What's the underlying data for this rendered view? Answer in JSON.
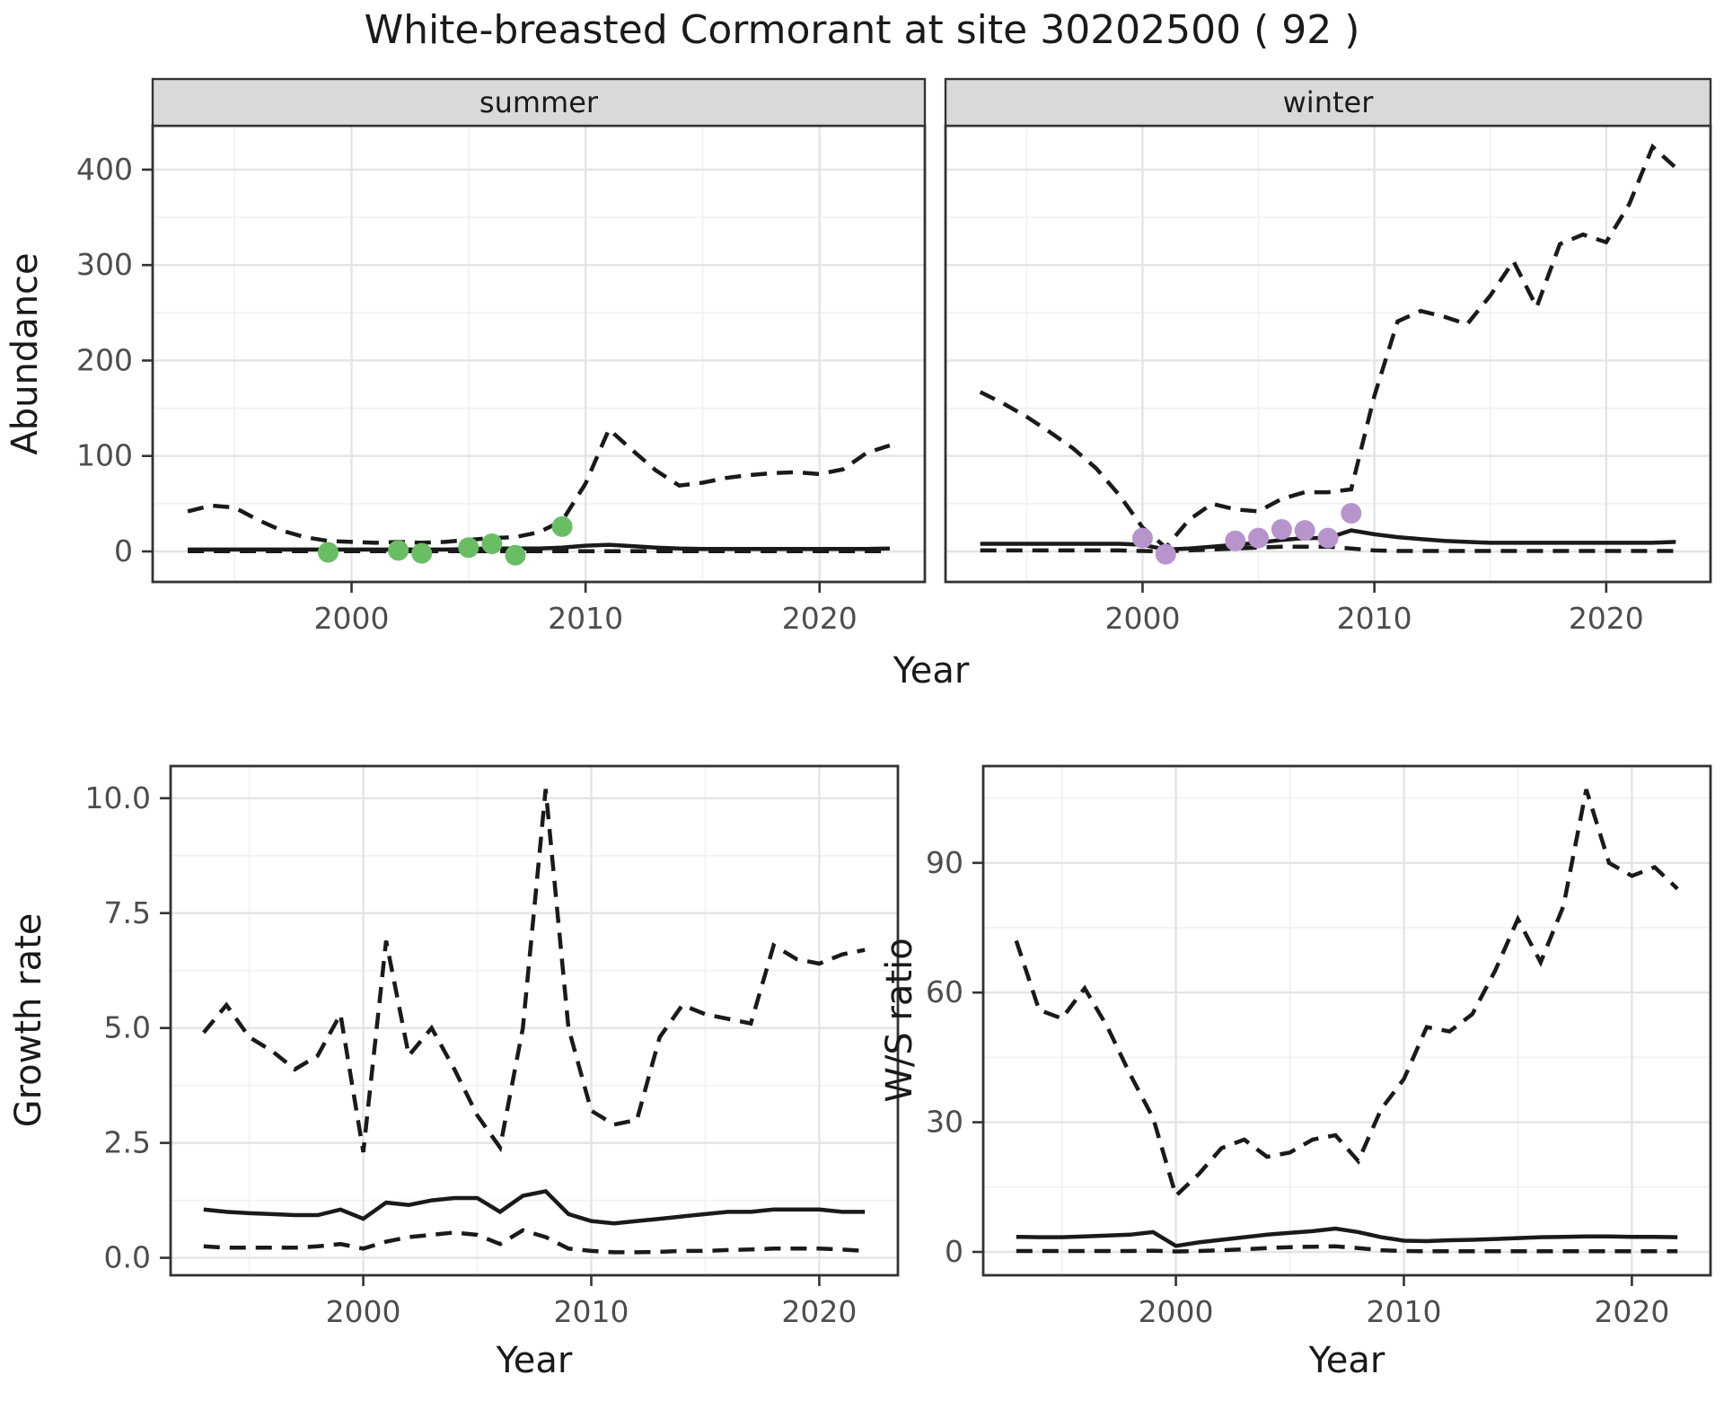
{
  "title": "White-breasted Cormorant at site 30202500 ( 92 )",
  "axis_titles": {
    "abundance": "Abundance",
    "year_top": "Year",
    "growth": "Growth rate",
    "year_growth": "Year",
    "ws": "W/S ratio",
    "year_ws": "Year"
  },
  "colors": {
    "line": "#1a1a1a",
    "summer_points": "#69BE64",
    "winter_points": "#B794CC",
    "strip_bg": "#D9D9D9",
    "panel_border": "#333333",
    "grid_major": "#E4E4E4",
    "grid_minor": "#F2F2F2",
    "axis_text": "#4D4D4D",
    "tick_mark": "#333333"
  },
  "chart_data": [
    {
      "type": "line",
      "facet": "summer",
      "xlabel": "Year",
      "ylabel": "Abundance",
      "x": [
        1993,
        1994,
        1995,
        1996,
        1997,
        1998,
        1999,
        2000,
        2001,
        2002,
        2003,
        2004,
        2005,
        2006,
        2007,
        2008,
        2009,
        2010,
        2011,
        2012,
        2013,
        2014,
        2015,
        2016,
        2017,
        2018,
        2019,
        2020,
        2021,
        2022,
        2023
      ],
      "series": [
        {
          "name": "upper_ci",
          "style": "dashed",
          "values": [
            42,
            48,
            46,
            33,
            22,
            15,
            11,
            10,
            9,
            10,
            9,
            10,
            12,
            14,
            15,
            20,
            32,
            71,
            128,
            106,
            85,
            69,
            72,
            77,
            80,
            82,
            83,
            81,
            86,
            103,
            111
          ]
        },
        {
          "name": "estimate",
          "style": "solid",
          "values": [
            2,
            2,
            2,
            2,
            2,
            2,
            2,
            2,
            2,
            2,
            2,
            2,
            2.5,
            3,
            3,
            3,
            4,
            6,
            7,
            5.5,
            4,
            3,
            2.5,
            2.5,
            2.5,
            2.5,
            2.5,
            2.5,
            2.5,
            2.5,
            3
          ]
        },
        {
          "name": "lower_ci",
          "style": "dashed",
          "values": [
            0.3,
            0.3,
            0.3,
            0.3,
            0.3,
            0.3,
            0.3,
            0.3,
            0.3,
            0.3,
            0.3,
            0.3,
            0.3,
            0.3,
            0.3,
            0.3,
            0.3,
            0.3,
            0.3,
            0.3,
            0.3,
            0.3,
            0.3,
            0.3,
            0.3,
            0.3,
            0.3,
            0.3,
            0.3,
            0.3,
            0.3
          ]
        }
      ],
      "points": {
        "name": "observed-counts-summer",
        "color": "#69BE64",
        "x": [
          1999,
          2002,
          2003,
          2005,
          2006,
          2007,
          2009
        ],
        "y": [
          -1,
          1,
          -2,
          4,
          8,
          -4,
          26
        ]
      },
      "xlim": [
        1991.5,
        2024.5
      ],
      "ylim": [
        -32,
        446
      ],
      "xticks": [
        2000,
        2010,
        2020
      ],
      "xtick_labels": [
        "2000",
        "2010",
        "2020"
      ],
      "xminor": [
        1995,
        2005,
        2015
      ],
      "yticks": [
        0,
        100,
        200,
        300,
        400
      ],
      "ytick_labels": [
        "0",
        "100",
        "200",
        "300",
        "400"
      ],
      "yminor": [
        50,
        150,
        250,
        350,
        450
      ],
      "show_yaxis": true,
      "grid": true,
      "legend_position": "none"
    },
    {
      "type": "line",
      "facet": "winter",
      "xlabel": "Year",
      "ylabel": "Abundance",
      "x": [
        1993,
        1994,
        1995,
        1996,
        1997,
        1998,
        1999,
        2000,
        2001,
        2002,
        2003,
        2004,
        2005,
        2006,
        2007,
        2008,
        2009,
        2010,
        2011,
        2012,
        2013,
        2014,
        2015,
        2016,
        2017,
        2018,
        2019,
        2020,
        2021,
        2022,
        2023
      ],
      "series": [
        {
          "name": "upper_ci",
          "style": "dashed",
          "values": [
            167,
            155,
            141,
            125,
            108,
            87,
            59,
            25,
            4,
            33,
            50,
            44,
            42,
            55,
            62,
            62,
            65,
            163,
            241,
            252,
            246,
            238,
            268,
            304,
            256,
            322,
            332,
            324,
            364,
            424,
            402
          ]
        },
        {
          "name": "estimate",
          "style": "solid",
          "values": [
            8,
            8,
            8,
            8,
            8,
            8,
            8,
            7,
            2,
            3,
            5,
            7,
            9,
            12,
            14,
            14,
            22,
            18,
            15,
            13,
            11,
            10,
            9,
            9,
            9,
            9,
            9,
            9,
            9,
            9,
            10
          ]
        },
        {
          "name": "lower_ci",
          "style": "dashed",
          "values": [
            1,
            1,
            1,
            1,
            1,
            1,
            1,
            0.5,
            0,
            1,
            2,
            3,
            4,
            5,
            5,
            5,
            3,
            1,
            0.5,
            0.5,
            0.5,
            0.5,
            0.5,
            0.5,
            0.5,
            0.5,
            0.5,
            0.5,
            0.5,
            0.5,
            0.5
          ]
        }
      ],
      "points": {
        "name": "observed-counts-winter",
        "color": "#B794CC",
        "x": [
          2000,
          2001,
          2004,
          2005,
          2006,
          2007,
          2008,
          2009
        ],
        "y": [
          14,
          -3,
          11,
          14,
          23,
          22,
          14,
          40
        ]
      },
      "xlim": [
        1991.5,
        2024.5
      ],
      "ylim": [
        -32,
        446
      ],
      "xticks": [
        2000,
        2010,
        2020
      ],
      "xtick_labels": [
        "2000",
        "2010",
        "2020"
      ],
      "xminor": [
        1995,
        2005,
        2015
      ],
      "yticks": [
        0,
        100,
        200,
        300,
        400
      ],
      "ytick_labels": [
        "0",
        "100",
        "200",
        "300",
        "400"
      ],
      "yminor": [
        50,
        150,
        250,
        350,
        450
      ],
      "show_yaxis": false,
      "grid": true,
      "legend_position": "none"
    },
    {
      "type": "line",
      "facet": null,
      "xlabel": "Year",
      "ylabel": "Growth rate",
      "x": [
        1993,
        1994,
        1995,
        1996,
        1997,
        1998,
        1999,
        2000,
        2001,
        2002,
        2003,
        2004,
        2005,
        2006,
        2007,
        2008,
        2009,
        2010,
        2011,
        2012,
        2013,
        2014,
        2015,
        2016,
        2017,
        2018,
        2019,
        2020,
        2021,
        2022
      ],
      "series": [
        {
          "name": "upper_ci",
          "style": "dashed",
          "values": [
            4.9,
            5.5,
            4.8,
            4.5,
            4.1,
            4.4,
            5.3,
            2.3,
            6.9,
            4.4,
            5.0,
            4.1,
            3.1,
            2.4,
            5.0,
            10.2,
            5.0,
            3.2,
            2.9,
            3.0,
            4.8,
            5.5,
            5.3,
            5.2,
            5.1,
            6.8,
            6.5,
            6.4,
            6.6,
            6.7
          ]
        },
        {
          "name": "estimate",
          "style": "solid",
          "values": [
            1.05,
            1.0,
            0.97,
            0.95,
            0.93,
            0.93,
            1.05,
            0.85,
            1.2,
            1.15,
            1.25,
            1.3,
            1.3,
            1.0,
            1.35,
            1.45,
            0.95,
            0.8,
            0.75,
            0.8,
            0.85,
            0.9,
            0.95,
            1.0,
            1.0,
            1.05,
            1.05,
            1.05,
            1.0,
            1.0
          ]
        },
        {
          "name": "lower_ci",
          "style": "dashed",
          "values": [
            0.25,
            0.22,
            0.22,
            0.22,
            0.22,
            0.25,
            0.3,
            0.2,
            0.35,
            0.45,
            0.5,
            0.55,
            0.5,
            0.3,
            0.6,
            0.45,
            0.2,
            0.15,
            0.12,
            0.12,
            0.13,
            0.15,
            0.15,
            0.17,
            0.18,
            0.2,
            0.2,
            0.2,
            0.18,
            0.15
          ]
        }
      ],
      "points": null,
      "xlim": [
        1991.55,
        2023.45
      ],
      "ylim": [
        -0.38,
        10.7
      ],
      "xticks": [
        2000,
        2010,
        2020
      ],
      "xtick_labels": [
        "2000",
        "2010",
        "2020"
      ],
      "xminor": [
        1995,
        2005,
        2015
      ],
      "yticks": [
        0,
        2.5,
        5,
        7.5,
        10
      ],
      "ytick_labels": [
        "0.0",
        "2.5",
        "5.0",
        "7.5",
        "10.0"
      ],
      "yminor": [
        1.25,
        3.75,
        6.25,
        8.75
      ],
      "show_yaxis": true,
      "grid": true,
      "legend_position": "none"
    },
    {
      "type": "line",
      "facet": null,
      "xlabel": "Year",
      "ylabel": "W/S ratio",
      "x": [
        1993,
        1994,
        1995,
        1996,
        1997,
        1998,
        1999,
        2000,
        2001,
        2002,
        2003,
        2004,
        2005,
        2006,
        2007,
        2008,
        2009,
        2010,
        2011,
        2012,
        2013,
        2014,
        2015,
        2016,
        2017,
        2018,
        2019,
        2020,
        2021,
        2022
      ],
      "series": [
        {
          "name": "upper_ci",
          "style": "dashed",
          "values": [
            72,
            56,
            54,
            61,
            52,
            41,
            31,
            13,
            18,
            24,
            26,
            22,
            23,
            26,
            27,
            21,
            33,
            40,
            52,
            51,
            55,
            65,
            77,
            67,
            80,
            107,
            90,
            87,
            89,
            84
          ]
        },
        {
          "name": "estimate",
          "style": "solid",
          "values": [
            3.5,
            3.4,
            3.4,
            3.6,
            3.8,
            4.0,
            4.6,
            1.4,
            2.2,
            2.8,
            3.4,
            4.0,
            4.4,
            4.8,
            5.4,
            4.6,
            3.4,
            2.6,
            2.5,
            2.7,
            2.8,
            3.0,
            3.2,
            3.4,
            3.5,
            3.6,
            3.6,
            3.5,
            3.5,
            3.4
          ]
        },
        {
          "name": "lower_ci",
          "style": "dashed",
          "values": [
            0.2,
            0.2,
            0.2,
            0.2,
            0.2,
            0.2,
            0.3,
            0.1,
            0.2,
            0.4,
            0.6,
            0.9,
            1.1,
            1.2,
            1.3,
            0.9,
            0.4,
            0.2,
            0.15,
            0.15,
            0.15,
            0.15,
            0.15,
            0.15,
            0.15,
            0.15,
            0.15,
            0.15,
            0.15,
            0.15
          ]
        }
      ],
      "points": null,
      "xlim": [
        1991.55,
        2023.45
      ],
      "ylim": [
        -5.4,
        112.4
      ],
      "xticks": [
        2000,
        2010,
        2020
      ],
      "xtick_labels": [
        "2000",
        "2010",
        "2020"
      ],
      "xminor": [
        1995,
        2005,
        2015
      ],
      "yticks": [
        0,
        30,
        60,
        90
      ],
      "ytick_labels": [
        "0",
        "30",
        "60",
        "90"
      ],
      "yminor": [
        15,
        45,
        75,
        105
      ],
      "show_yaxis": true,
      "grid": true,
      "legend_position": "none"
    }
  ]
}
